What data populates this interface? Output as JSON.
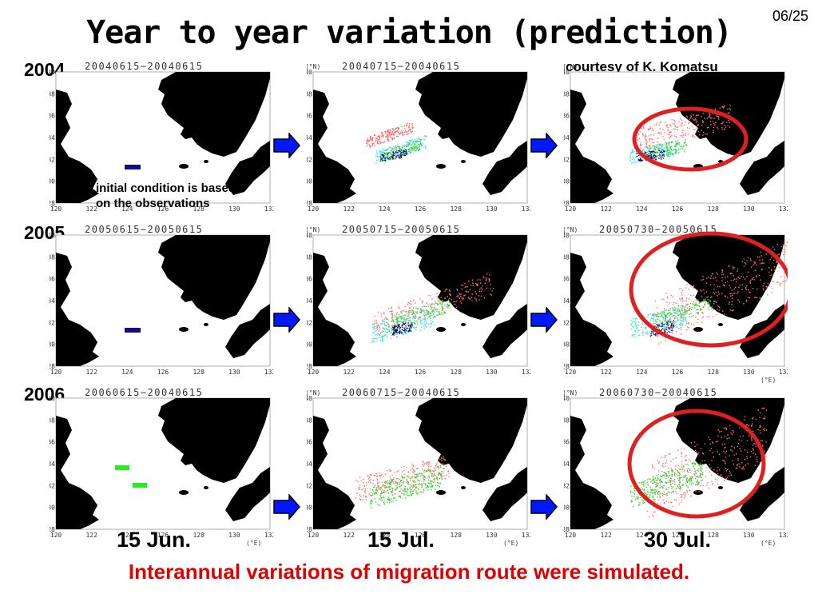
{
  "slide": {
    "title": "Year to year variation (prediction)",
    "slide_number": "06/25",
    "credit": "courtesy of K. Komatsu",
    "note_line1": "initial condition is based",
    "note_line2": "on the observations",
    "summary": "Interannual variations of migration route were simulated.",
    "column_dates": [
      "15 Jun.",
      "15 Jul.",
      "30 Jul."
    ],
    "colors": {
      "title": "#000000",
      "summary": "#e00000",
      "arrow": "#0018ff",
      "circle": "#e02020",
      "land": "#000000",
      "marker_2004_2005": "#101080",
      "marker_2006": "#22ee22"
    }
  },
  "map_axes": {
    "lat_ticks": [
      "40",
      "38",
      "36",
      "34",
      "32",
      "30",
      "28"
    ],
    "lon_ticks": [
      "120",
      "122",
      "124",
      "126",
      "128",
      "130",
      "132"
    ],
    "lat_unit": "(°N)",
    "lon_unit": "(°E)"
  },
  "rows": [
    {
      "year": "2004",
      "panels": [
        {
          "header": "20040615−20040615"
        },
        {
          "header": "20040715−20040615"
        },
        {
          "header": ""
        }
      ]
    },
    {
      "year": "2005",
      "panels": [
        {
          "header": "20050615−20050615"
        },
        {
          "header": "20050715−20050615"
        },
        {
          "header": "20050730−20050615"
        }
      ]
    },
    {
      "year": "2006",
      "panels": [
        {
          "header": "20060615−20040615"
        },
        {
          "header": "20060715−20040615"
        },
        {
          "header": "20060730−20040615"
        }
      ]
    }
  ]
}
